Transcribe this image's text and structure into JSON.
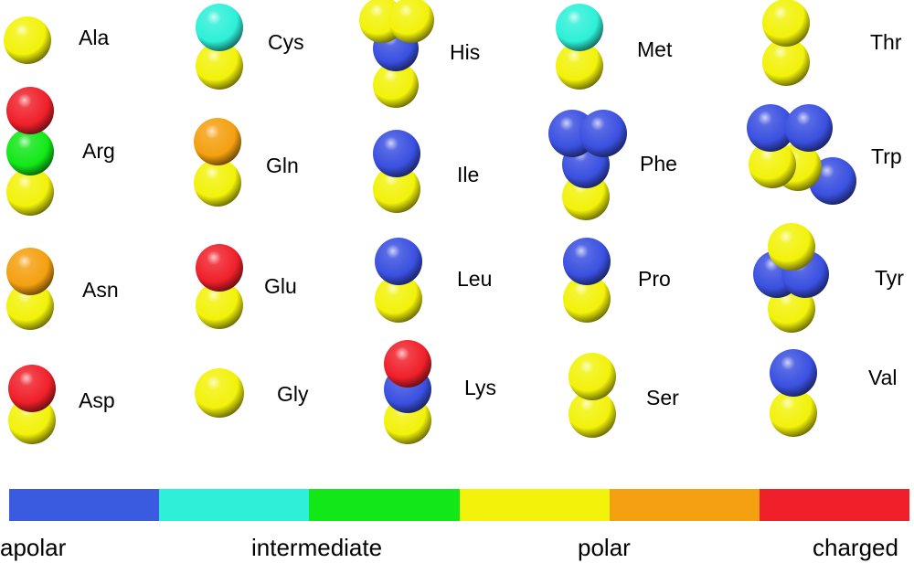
{
  "palette": {
    "apolar": "#3a50e0",
    "intermediate": "#2ef0d8",
    "apolar_intermediate_mid": "#3ad0e8",
    "intermediate_green": "#12e818",
    "polar": "#f2f20a",
    "polar_orange": "#f4a010",
    "charged": "#f0202a"
  },
  "scale": {
    "segments": [
      "#3a5ae0",
      "#2ef0d8",
      "#12e818",
      "#f2f20a",
      "#f4a010",
      "#f0202a"
    ],
    "labels": [
      "apolar",
      "intermediate",
      "polar",
      "charged"
    ]
  },
  "amino_acids": [
    {
      "name": "Ala",
      "beads": [
        "polar"
      ]
    },
    {
      "name": "Arg",
      "beads": [
        "charged",
        "intermediate_green",
        "polar"
      ]
    },
    {
      "name": "Asn",
      "beads": [
        "polar_orange",
        "polar"
      ]
    },
    {
      "name": "Asp",
      "beads": [
        "charged",
        "polar"
      ]
    },
    {
      "name": "Cys",
      "beads": [
        "intermediate",
        "polar"
      ]
    },
    {
      "name": "Gln",
      "beads": [
        "polar_orange",
        "polar"
      ]
    },
    {
      "name": "Glu",
      "beads": [
        "charged",
        "polar"
      ]
    },
    {
      "name": "Gly",
      "beads": [
        "polar"
      ]
    },
    {
      "name": "His",
      "beads": [
        "polar",
        "polar",
        "apolar",
        "polar"
      ]
    },
    {
      "name": "Ile",
      "beads": [
        "apolar",
        "polar"
      ]
    },
    {
      "name": "Leu",
      "beads": [
        "apolar",
        "polar"
      ]
    },
    {
      "name": "Lys",
      "beads": [
        "charged",
        "apolar",
        "polar"
      ]
    },
    {
      "name": "Met",
      "beads": [
        "intermediate",
        "polar"
      ]
    },
    {
      "name": "Phe",
      "beads": [
        "apolar",
        "apolar",
        "apolar",
        "polar"
      ]
    },
    {
      "name": "Pro",
      "beads": [
        "apolar",
        "polar"
      ]
    },
    {
      "name": "Ser",
      "beads": [
        "polar",
        "polar"
      ]
    },
    {
      "name": "Thr",
      "beads": [
        "polar",
        "polar"
      ]
    },
    {
      "name": "Trp",
      "beads": [
        "apolar",
        "apolar",
        "polar",
        "apolar",
        "polar"
      ]
    },
    {
      "name": "Tyr",
      "beads": [
        "polar",
        "apolar",
        "apolar",
        "polar"
      ]
    },
    {
      "name": "Val",
      "beads": [
        "apolar",
        "polar"
      ]
    }
  ]
}
